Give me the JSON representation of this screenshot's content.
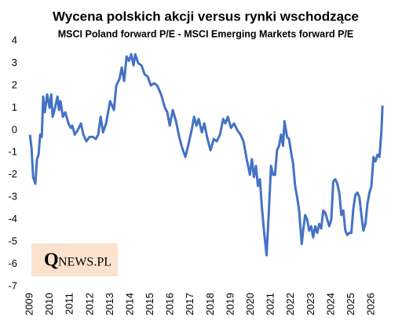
{
  "chart_data": {
    "type": "line",
    "title": "Wycena polskich akcji versus rynki wschodzące",
    "subtitle": "MSCI Poland forward P/E - MSCI Emerging Markets forward P/E",
    "logo": {
      "initial": "Q",
      "rest": "NEWS.PL"
    },
    "xlim": [
      2008.8,
      2026.7
    ],
    "xticks": [
      2009,
      2010,
      2011,
      2012,
      2013,
      2014,
      2015,
      2016,
      2017,
      2018,
      2019,
      2020,
      2021,
      2022,
      2023,
      2024,
      2025,
      2026
    ],
    "ylim": [
      -7,
      4
    ],
    "yticks": [
      -7,
      -6,
      -5,
      -4,
      -3,
      -2,
      -1,
      0,
      1,
      2,
      3,
      4
    ],
    "grid": false,
    "series": [
      {
        "color": "#4472c4",
        "x": [
          2009.0,
          2009.08,
          2009.16,
          2009.27,
          2009.35,
          2009.43,
          2009.51,
          2009.59,
          2009.66,
          2009.74,
          2009.86,
          2009.98,
          2010.06,
          2010.13,
          2010.25,
          2010.37,
          2010.45,
          2010.52,
          2010.64,
          2010.76,
          2010.92,
          2011.03,
          2011.11,
          2011.23,
          2011.38,
          2011.54,
          2011.66,
          2011.81,
          2011.97,
          2012.13,
          2012.28,
          2012.4,
          2012.52,
          2012.64,
          2012.79,
          2012.99,
          2013.18,
          2013.3,
          2013.46,
          2013.57,
          2013.69,
          2013.81,
          2013.93,
          2014.04,
          2014.16,
          2014.24,
          2014.39,
          2014.55,
          2014.71,
          2014.86,
          2015.02,
          2015.18,
          2015.33,
          2015.53,
          2015.72,
          2015.84,
          2015.96,
          2016.11,
          2016.27,
          2016.43,
          2016.58,
          2016.74,
          2016.9,
          2017.05,
          2017.17,
          2017.29,
          2017.4,
          2017.56,
          2017.68,
          2017.84,
          2017.99,
          2018.15,
          2018.3,
          2018.46,
          2018.62,
          2018.73,
          2018.85,
          2019.01,
          2019.16,
          2019.32,
          2019.48,
          2019.63,
          2019.79,
          2019.95,
          2020.05,
          2020.15,
          2020.25,
          2020.35,
          2020.45,
          2020.55,
          2020.65,
          2020.78,
          2020.9,
          2021.0,
          2021.1,
          2021.2,
          2021.3,
          2021.4,
          2021.5,
          2021.6,
          2021.67,
          2021.8,
          2021.9,
          2022.0,
          2022.1,
          2022.2,
          2022.3,
          2022.4,
          2022.53,
          2022.6,
          2022.7,
          2022.8,
          2022.9,
          2023.0,
          2023.1,
          2023.2,
          2023.3,
          2023.4,
          2023.5,
          2023.6,
          2023.7,
          2023.9,
          2024.0,
          2024.1,
          2024.2,
          2024.3,
          2024.4,
          2024.5,
          2024.6,
          2024.7,
          2024.8,
          2024.9,
          2025.0,
          2025.1,
          2025.2,
          2025.3,
          2025.4,
          2025.5,
          2025.6,
          2025.7,
          2025.8,
          2025.9,
          2026.0,
          2026.1,
          2026.2,
          2026.3,
          2026.4,
          2026.5,
          2026.55
        ],
        "values": [
          -0.2,
          -0.8,
          -2.1,
          -2.4,
          -1.3,
          -1.1,
          -0.2,
          -0.3,
          1.5,
          0.8,
          1.6,
          1.0,
          1.6,
          0.6,
          1.0,
          1.5,
          0.9,
          1.3,
          0.6,
          0.8,
          0.3,
          0.1,
          0.2,
          -0.2,
          0.0,
          0.3,
          -0.2,
          -0.5,
          -0.3,
          -0.3,
          -0.4,
          -0.2,
          0.6,
          -0.1,
          0.3,
          1.3,
          0.9,
          2.0,
          2.3,
          2.8,
          2.2,
          3.3,
          3.1,
          3.4,
          2.9,
          3.4,
          3.0,
          2.9,
          2.5,
          2.4,
          2.0,
          2.1,
          2.0,
          1.6,
          1.0,
          0.8,
          0.2,
          0.9,
          0.4,
          -0.3,
          -0.8,
          -1.2,
          -0.6,
          0.0,
          0.6,
          0.2,
          0.5,
          -0.1,
          0.3,
          -0.4,
          -0.9,
          -0.4,
          -0.5,
          -0.2,
          0.5,
          0.3,
          0.6,
          0.1,
          0.3,
          0.0,
          -0.2,
          -0.5,
          -1.3,
          -2.0,
          -1.3,
          -2.1,
          -1.6,
          -2.5,
          -2.2,
          -3.5,
          -4.5,
          -5.6,
          -3.5,
          -1.6,
          -2.0,
          -2.0,
          -0.9,
          -0.7,
          -0.2,
          -0.7,
          0.4,
          -0.3,
          -0.4,
          -1.0,
          -1.5,
          -2.5,
          -3.0,
          -3.6,
          -5.1,
          -4.5,
          -3.8,
          -4.0,
          -4.5,
          -4.3,
          -4.8,
          -4.3,
          -4.6,
          -4.2,
          -4.4,
          -3.6,
          -3.7,
          -4.3,
          -4.0,
          -2.3,
          -2.2,
          -2.4,
          -2.8,
          -3.8,
          -3.6,
          -4.5,
          -4.7,
          -4.6,
          -4.6,
          -3.5,
          -2.9,
          -2.8,
          -3.0,
          -3.8,
          -4.5,
          -4.2,
          -3.3,
          -2.8,
          -2.5,
          -1.2,
          -1.4,
          -1.1,
          -1.2,
          0.0,
          1.1
        ]
      }
    ]
  }
}
